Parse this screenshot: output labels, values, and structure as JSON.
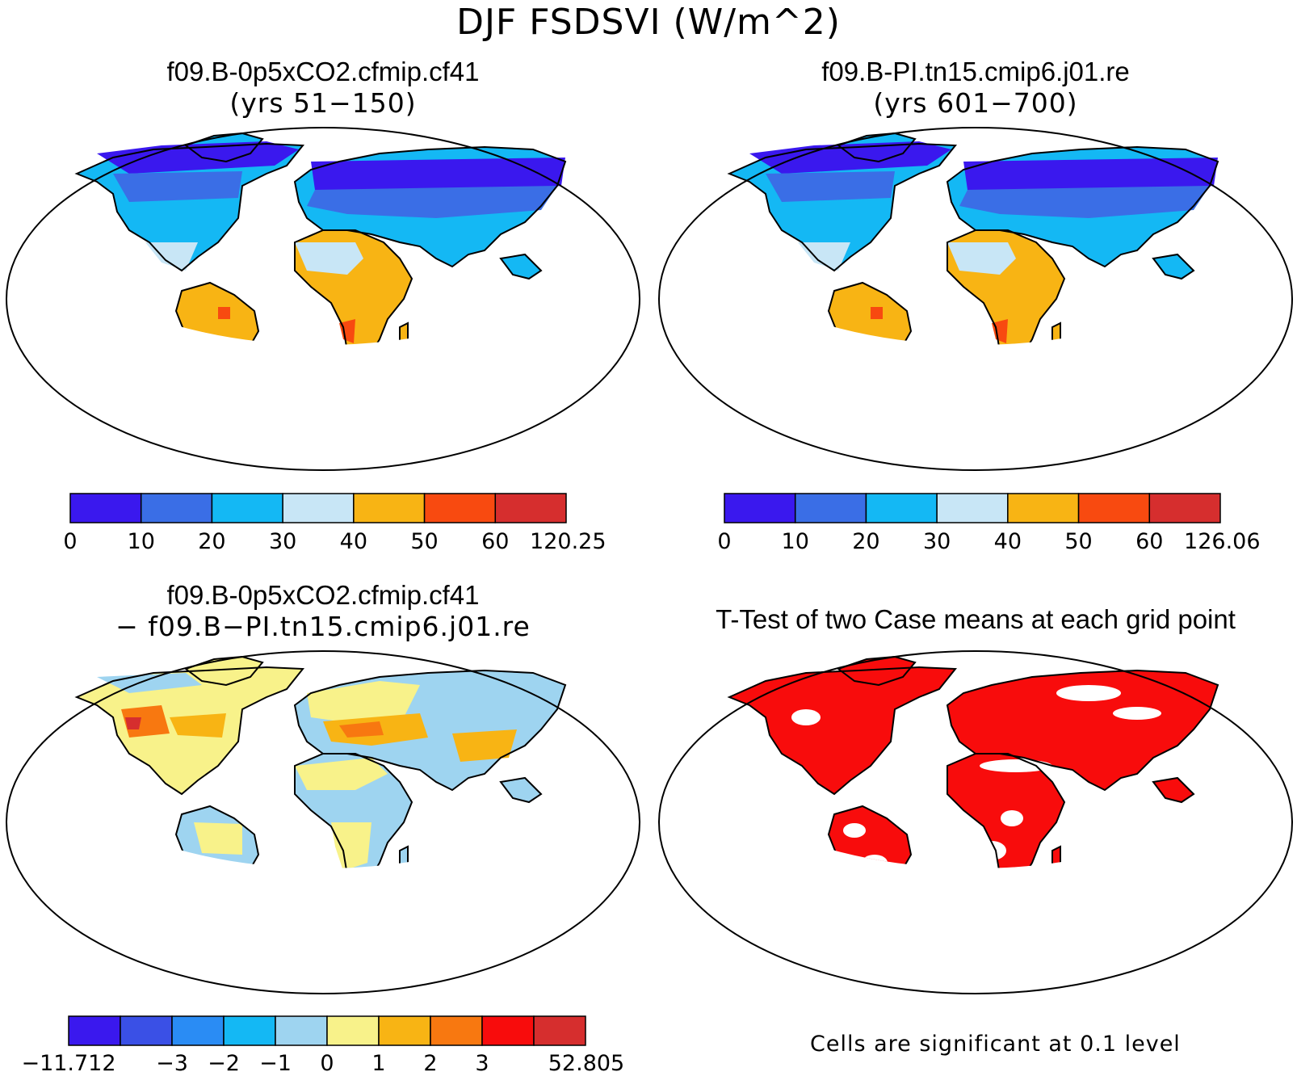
{
  "main_title": "DJF FSDSVI (W/m^2)",
  "panels": [
    {
      "title": "f09.B-0p5xCO2.cfmip.cf41",
      "subtitle": "(yrs 51−150)"
    },
    {
      "title": "f09.B-PI.tn15.cmip6.j01.re",
      "subtitle": "(yrs 601−700)"
    },
    {
      "title": "f09.B-0p5xCO2.cfmip.cf41",
      "subtitle": "− f09.B−PI.tn15.cmip6.j01.re"
    },
    {
      "title": "T-Test of two Case means at each grid point",
      "note": "Cells are significant at 0.1 level"
    }
  ],
  "colorbars": [
    {
      "colors": [
        "#3a18ee",
        "#3a6ee6",
        "#14b8f4",
        "#c8e6f6",
        "#f8b414",
        "#f84a10",
        "#d62e2e"
      ],
      "labels": [
        "0",
        "10",
        "20",
        "30",
        "40",
        "50",
        "60",
        "120.25"
      ]
    },
    {
      "colors": [
        "#3a18ee",
        "#3a6ee6",
        "#14b8f4",
        "#c8e6f6",
        "#f8b414",
        "#f84a10",
        "#d62e2e"
      ],
      "labels": [
        "0",
        "10",
        "20",
        "30",
        "40",
        "50",
        "60",
        "126.06"
      ]
    },
    {
      "colors": [
        "#3a18ee",
        "#3a50e6",
        "#2a8cf4",
        "#14b8f4",
        "#9ed4f0",
        "#f8f28a",
        "#f8b414",
        "#f87810",
        "#f80c0c",
        "#d62e2e"
      ],
      "labels": [
        "−11.712",
        "−3",
        "−2",
        "−1",
        "0",
        "1",
        "2",
        "3",
        "52.805"
      ]
    }
  ]
}
